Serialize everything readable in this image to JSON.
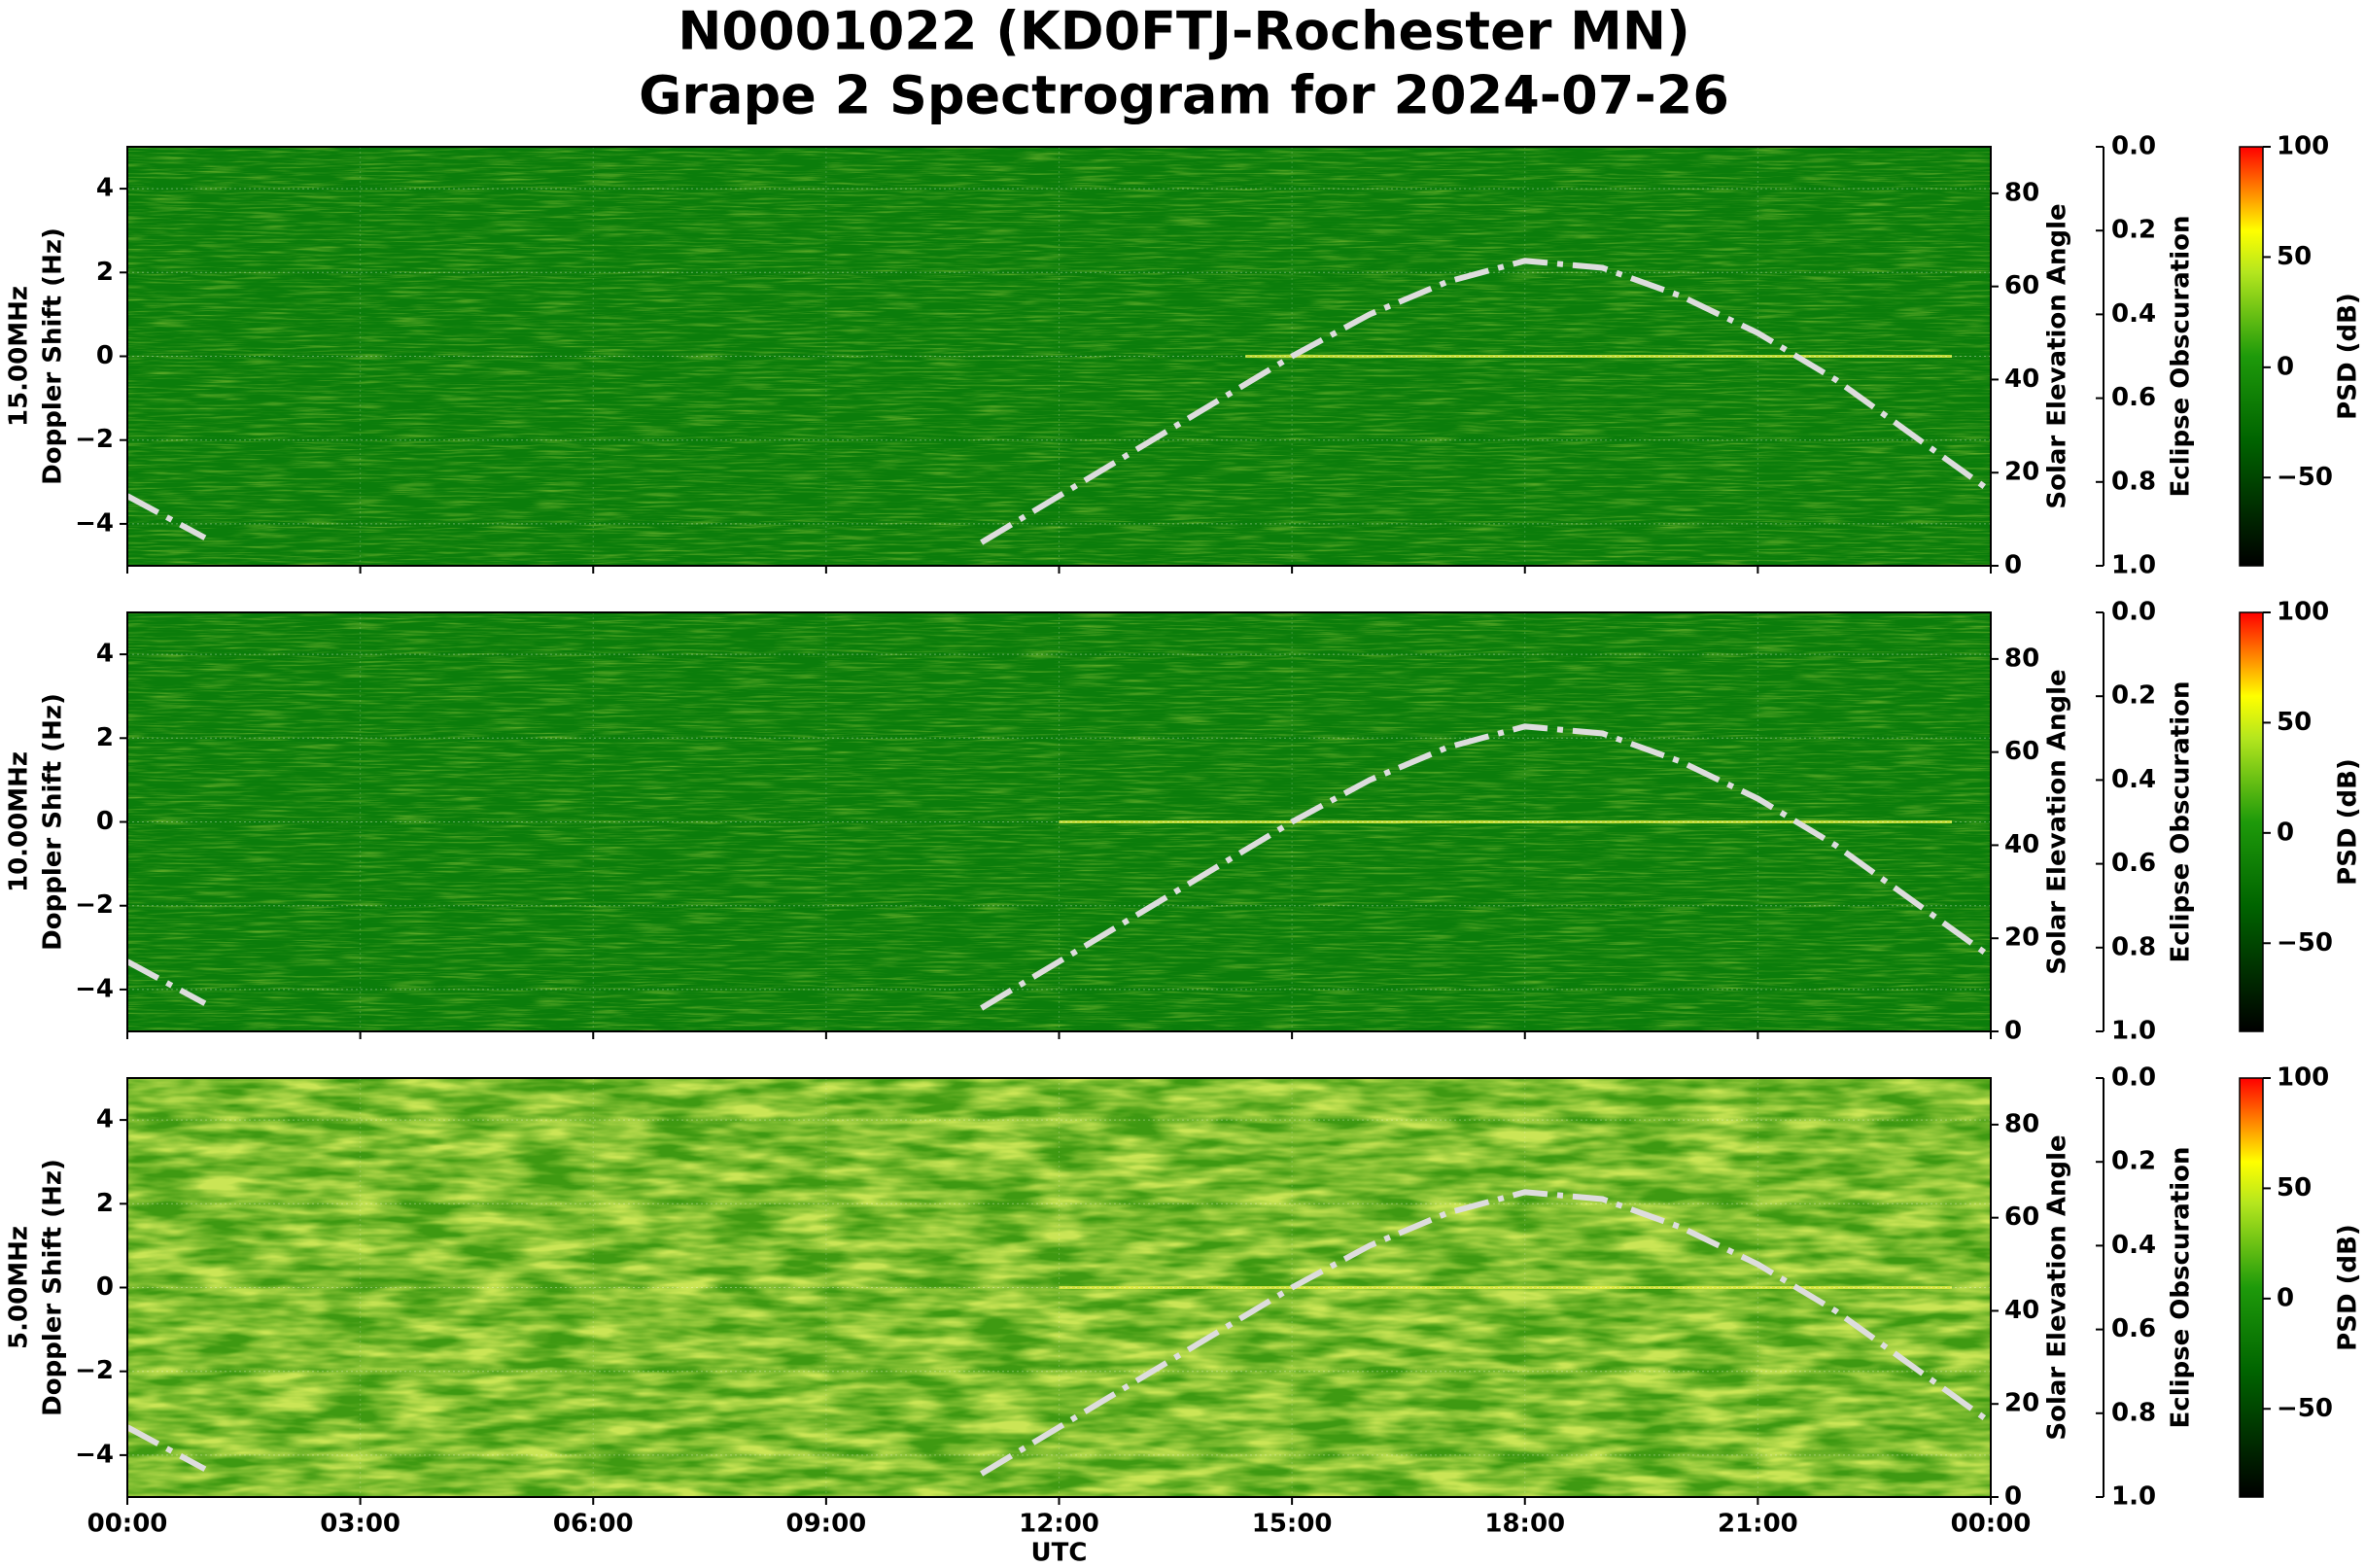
{
  "chart_data": [
    {
      "type": "heatmap",
      "title": [
        "N0001022 (KD0FTJ-Rochester MN)",
        "Grape 2 Spectrogram for 2024-07-26"
      ],
      "ylabel": [
        "15.00MHz",
        "Doppler Shift (Hz)"
      ],
      "ylim": [
        -5,
        5
      ],
      "yticks": [
        {
          "value": -4,
          "label": "−4"
        },
        {
          "value": -2,
          "label": "−2"
        },
        0,
        2,
        4
      ],
      "grid": true,
      "xlim": [
        0,
        24
      ],
      "xticks": [
        0,
        3,
        6,
        9,
        12,
        15,
        18,
        21,
        24
      ],
      "x": [
        0,
        1,
        2,
        3,
        4,
        5,
        6,
        7,
        8,
        9,
        10,
        11,
        12,
        13,
        14,
        15,
        16,
        17,
        18,
        19,
        20,
        21,
        22,
        23,
        24
      ],
      "series": [
        {
          "color": "#dddddd",
          "axis": "y2",
          "values": [
            15,
            6,
            null,
            null,
            null,
            null,
            null,
            null,
            null,
            null,
            null,
            5,
            15,
            25,
            35,
            45,
            54,
            61,
            65.5,
            64,
            58,
            50,
            40,
            28,
            16
          ]
        }
      ],
      "y2label": "Solar Elevation Angle",
      "y2lim": [
        0,
        90
      ],
      "y2ticks": [
        0,
        20,
        40,
        60,
        80
      ],
      "y3label": "Eclipse Obscuration",
      "y3lim": [
        1,
        0
      ],
      "y3ticks": [
        {
          "value": 0,
          "label": "0.0"
        },
        {
          "value": 0.2,
          "label": "0.2"
        },
        {
          "value": 0.4,
          "label": "0.4"
        },
        {
          "value": 0.6,
          "label": "0.6"
        },
        {
          "value": 0.8,
          "label": "0.8"
        },
        {
          "value": 1,
          "label": "1.0"
        }
      ],
      "colorbar": {
        "label": "PSD (dB)",
        "lim": [
          -90,
          100
        ],
        "ticks": [
          {
            "value": -50,
            "label": "−50"
          },
          0,
          50,
          100
        ]
      }
    },
    {
      "type": "heatmap",
      "ylabel": [
        "10.00MHz",
        "Doppler Shift (Hz)"
      ],
      "ylim": [
        -5,
        5
      ],
      "yticks": [
        {
          "value": -4,
          "label": "−4"
        },
        {
          "value": -2,
          "label": "−2"
        },
        0,
        2,
        4
      ],
      "grid": true,
      "xlim": [
        0,
        24
      ],
      "xticks": [
        0,
        3,
        6,
        9,
        12,
        15,
        18,
        21,
        24
      ],
      "x": [
        0,
        1,
        2,
        3,
        4,
        5,
        6,
        7,
        8,
        9,
        10,
        11,
        12,
        13,
        14,
        15,
        16,
        17,
        18,
        19,
        20,
        21,
        22,
        23,
        24
      ],
      "series": [
        {
          "color": "#dddddd",
          "axis": "y2",
          "values": [
            15,
            6,
            null,
            null,
            null,
            null,
            null,
            null,
            null,
            null,
            null,
            5,
            15,
            25,
            35,
            45,
            54,
            61,
            65.5,
            64,
            58,
            50,
            40,
            28,
            16
          ]
        }
      ],
      "y2label": "Solar Elevation Angle",
      "y2lim": [
        0,
        90
      ],
      "y2ticks": [
        0,
        20,
        40,
        60,
        80
      ],
      "y3label": "Eclipse Obscuration",
      "y3lim": [
        1,
        0
      ],
      "y3ticks": [
        {
          "value": 0,
          "label": "0.0"
        },
        {
          "value": 0.2,
          "label": "0.2"
        },
        {
          "value": 0.4,
          "label": "0.4"
        },
        {
          "value": 0.6,
          "label": "0.6"
        },
        {
          "value": 0.8,
          "label": "0.8"
        },
        {
          "value": 1,
          "label": "1.0"
        }
      ],
      "colorbar": {
        "label": "PSD (dB)",
        "lim": [
          -90,
          100
        ],
        "ticks": [
          {
            "value": -50,
            "label": "−50"
          },
          0,
          50,
          100
        ]
      }
    },
    {
      "type": "heatmap",
      "ylabel": [
        "5.00MHz",
        "Doppler Shift (Hz)"
      ],
      "ylim": [
        -5,
        5
      ],
      "yticks": [
        {
          "value": -4,
          "label": "−4"
        },
        {
          "value": -2,
          "label": "−2"
        },
        0,
        2,
        4
      ],
      "grid": true,
      "xlim": [
        0,
        24
      ],
      "xlabel": "UTC",
      "xticks": [
        {
          "value": 0,
          "label": "00:00"
        },
        {
          "value": 3,
          "label": "03:00"
        },
        {
          "value": 6,
          "label": "06:00"
        },
        {
          "value": 9,
          "label": "09:00"
        },
        {
          "value": 12,
          "label": "12:00"
        },
        {
          "value": 15,
          "label": "15:00"
        },
        {
          "value": 18,
          "label": "18:00"
        },
        {
          "value": 21,
          "label": "21:00"
        },
        {
          "value": 24,
          "label": "00:00"
        }
      ],
      "x": [
        0,
        1,
        2,
        3,
        4,
        5,
        6,
        7,
        8,
        9,
        10,
        11,
        12,
        13,
        14,
        15,
        16,
        17,
        18,
        19,
        20,
        21,
        22,
        23,
        24
      ],
      "series": [
        {
          "color": "#dddddd",
          "axis": "y2",
          "values": [
            15,
            6,
            null,
            null,
            null,
            null,
            null,
            null,
            null,
            null,
            null,
            5,
            15,
            25,
            35,
            45,
            54,
            61,
            65.5,
            64,
            58,
            50,
            40,
            28,
            16
          ]
        }
      ],
      "y2label": "Solar Elevation Angle",
      "y2lim": [
        0,
        90
      ],
      "y2ticks": [
        0,
        20,
        40,
        60,
        80
      ],
      "y3label": "Eclipse Obscuration",
      "y3lim": [
        1,
        0
      ],
      "y3ticks": [
        {
          "value": 0,
          "label": "0.0"
        },
        {
          "value": 0.2,
          "label": "0.2"
        },
        {
          "value": 0.4,
          "label": "0.4"
        },
        {
          "value": 0.6,
          "label": "0.6"
        },
        {
          "value": 0.8,
          "label": "0.8"
        },
        {
          "value": 1,
          "label": "1.0"
        }
      ],
      "colorbar": {
        "label": "PSD (dB)",
        "lim": [
          -90,
          100
        ],
        "ticks": [
          {
            "value": -50,
            "label": "−50"
          },
          0,
          50,
          100
        ]
      }
    }
  ]
}
